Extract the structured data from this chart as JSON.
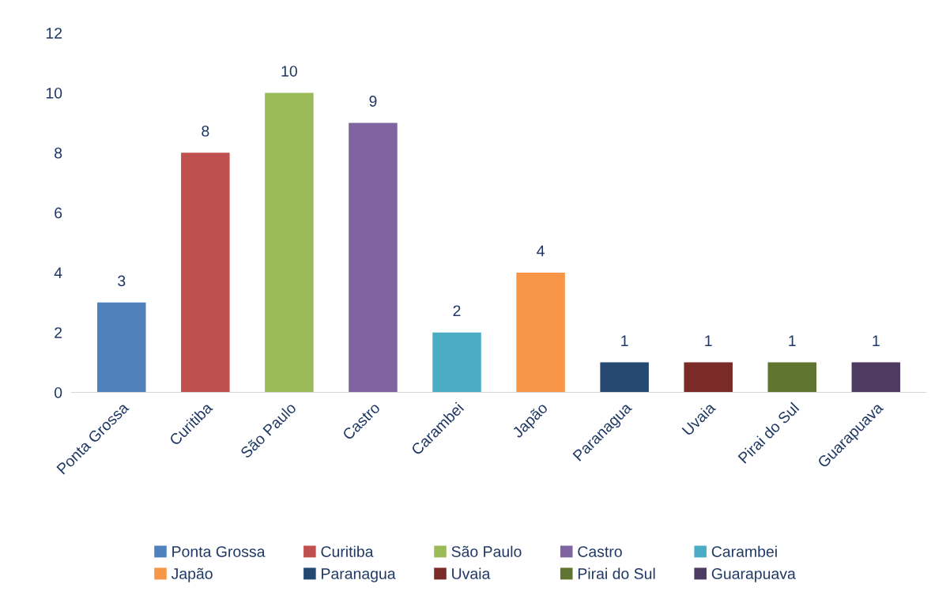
{
  "chart_data": {
    "type": "bar",
    "categories": [
      "Ponta Grossa",
      "Curitiba",
      "São Paulo",
      "Castro",
      "Carambei",
      "Japão",
      "Paranagua",
      "Uvaia",
      "Pirai do Sul",
      "Guarapuava"
    ],
    "series": [
      {
        "name": "Ponta Grossa",
        "color": "#4f81bd",
        "values": [
          3,
          null,
          null,
          null,
          null,
          null,
          null,
          null,
          null,
          null
        ]
      },
      {
        "name": "Curitiba",
        "color": "#c0504d",
        "values": [
          null,
          8,
          null,
          null,
          null,
          null,
          null,
          null,
          null,
          null
        ]
      },
      {
        "name": "São Paulo",
        "color": "#9bbb59",
        "values": [
          null,
          null,
          10,
          null,
          null,
          null,
          null,
          null,
          null,
          null
        ]
      },
      {
        "name": "Castro",
        "color": "#8064a2",
        "values": [
          null,
          null,
          null,
          9,
          null,
          null,
          null,
          null,
          null,
          null
        ]
      },
      {
        "name": "Carambei",
        "color": "#4bacc6",
        "values": [
          null,
          null,
          null,
          null,
          2,
          null,
          null,
          null,
          null,
          null
        ]
      },
      {
        "name": "Japão",
        "color": "#f79646",
        "values": [
          null,
          null,
          null,
          null,
          null,
          4,
          null,
          null,
          null,
          null
        ]
      },
      {
        "name": "Paranagua",
        "color": "#254870",
        "values": [
          null,
          null,
          null,
          null,
          null,
          null,
          1,
          null,
          null,
          null
        ]
      },
      {
        "name": "Uvaia",
        "color": "#7a2b28",
        "values": [
          null,
          null,
          null,
          null,
          null,
          null,
          null,
          1,
          null,
          null
        ]
      },
      {
        "name": "Pirai do Sul",
        "color": "#5f7530",
        "values": [
          null,
          null,
          null,
          null,
          null,
          null,
          null,
          null,
          1,
          null
        ]
      },
      {
        "name": "Guarapuava",
        "color": "#4d3b62",
        "values": [
          null,
          null,
          null,
          null,
          null,
          null,
          null,
          null,
          null,
          1
        ]
      }
    ],
    "ylim": [
      0,
      12
    ],
    "yticks": [
      0,
      2,
      4,
      6,
      8,
      10,
      12
    ],
    "data_labels": true,
    "legend": "bottom"
  }
}
